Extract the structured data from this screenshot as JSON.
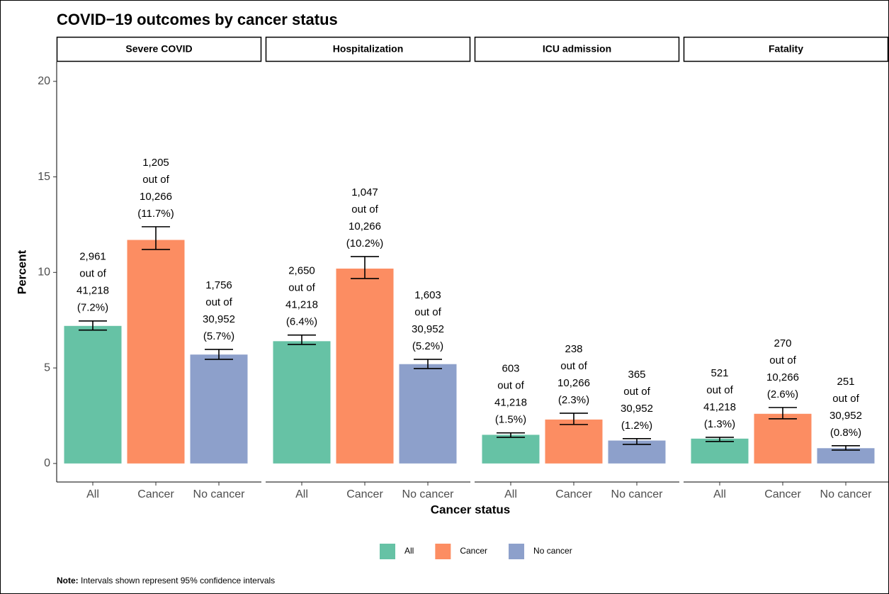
{
  "chart_data": {
    "type": "bar",
    "title": "COVID−19 outcomes by cancer status",
    "x_label": "Cancer status",
    "y_label": "Percent",
    "categories": [
      "All",
      "Cancer",
      "No cancer"
    ],
    "colors": [
      "#66c2a5",
      "#fc8d62",
      "#8da0cb"
    ],
    "ylim": [
      -0.97,
      21.03
    ],
    "yticks": [
      0,
      5,
      10,
      15,
      20
    ],
    "panels": [
      {
        "title": "Severe COVID",
        "values": [
          7.2,
          11.7,
          5.7
        ],
        "ci_low": [
          6.98,
          11.2,
          5.45
        ],
        "ci_high": [
          7.46,
          12.39,
          5.97
        ],
        "value_labels": [
          [
            "2,961",
            "out of",
            "41,218",
            "(7.2%)"
          ],
          [
            "1,205",
            "out of",
            "10,266",
            "(11.7%)"
          ],
          [
            "1,756",
            "out of",
            "30,952",
            "(5.7%)"
          ]
        ]
      },
      {
        "title": "Hospitalization",
        "values": [
          6.4,
          10.2,
          5.2
        ],
        "ci_low": [
          6.23,
          9.68,
          4.97
        ],
        "ci_high": [
          6.72,
          10.83,
          5.45
        ],
        "value_labels": [
          [
            "2,650",
            "out of",
            "41,218",
            "(6.4%)"
          ],
          [
            "1,047",
            "out of",
            "10,266",
            "(10.2%)"
          ],
          [
            "1,603",
            "out of",
            "30,952",
            "(5.2%)"
          ]
        ]
      },
      {
        "title": "ICU admission",
        "values": [
          1.5,
          2.3,
          1.2
        ],
        "ci_low": [
          1.37,
          2.04,
          1.0
        ],
        "ci_high": [
          1.6,
          2.63,
          1.3
        ],
        "value_labels": [
          [
            "603",
            "out of",
            "41,218",
            "(1.5%)"
          ],
          [
            "238",
            "out of",
            "10,266",
            "(2.3%)"
          ],
          [
            "365",
            "out of",
            "30,952",
            "(1.2%)"
          ]
        ]
      },
      {
        "title": "Fatality",
        "values": [
          1.3,
          2.6,
          0.8
        ],
        "ci_low": [
          1.15,
          2.34,
          0.7
        ],
        "ci_high": [
          1.37,
          2.93,
          0.93
        ],
        "value_labels": [
          [
            "521",
            "out of",
            "41,218",
            "(1.3%)"
          ],
          [
            "270",
            "out of",
            "10,266",
            "(2.6%)"
          ],
          [
            "251",
            "out of",
            "30,952",
            "(0.8%)"
          ]
        ]
      }
    ],
    "note": {
      "label": "Note:",
      "text": "Intervals shown represent 95% confidence intervals"
    }
  }
}
